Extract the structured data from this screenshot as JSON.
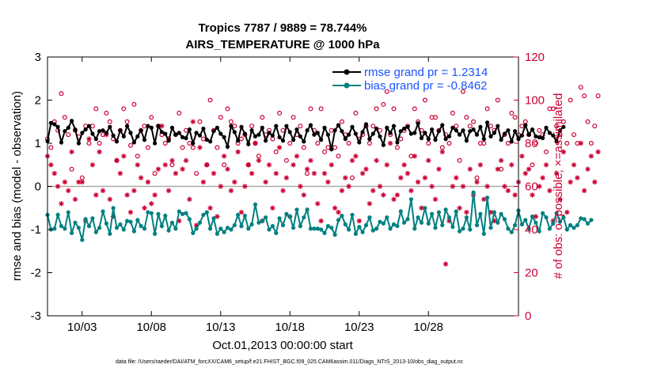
{
  "colors": {
    "rmse": "#000000",
    "bias": "#008080",
    "obs": "#cc0033",
    "legend_text": "#1a53ff",
    "zero_line": "#aaaaaa"
  },
  "footer": "data file: /Users/raeder/DAI/ATM_forcXX/CAM6_setup/f.e21.FHIST_BGC.f09_025.CAM6assim.011/Diags_NTrS_2013-10/obs_diag_output.nc",
  "chart_data": {
    "type": "line",
    "title": "Tropics 7787 / 9889 = 78.744%",
    "subtitle": "AIRS_TEMPERATURE @ 1000 hPa",
    "xlabel": "Oct.01,2013 00:00:00 start",
    "ylabel": "rmse and bias (model - observation)",
    "y2label": "# of obs: o=possible; ×=assimilated",
    "xlim": [
      0.5,
      34.5
    ],
    "ylim": [
      -3,
      3
    ],
    "y2lim": [
      0,
      120
    ],
    "x_ticks": [
      {
        "value": 3,
        "label": "10/03"
      },
      {
        "value": 8,
        "label": "10/08"
      },
      {
        "value": 13,
        "label": "10/13"
      },
      {
        "value": 18,
        "label": "10/18"
      },
      {
        "value": 23,
        "label": "10/23"
      },
      {
        "value": 28,
        "label": "10/28"
      }
    ],
    "y_ticks": [
      -3,
      -2,
      -1,
      0,
      1,
      2,
      3
    ],
    "y2_ticks": [
      0,
      20,
      40,
      60,
      80,
      100,
      120
    ],
    "legend": [
      {
        "name": "rmse grand pr = 1.2314",
        "key": "rmse"
      },
      {
        "name": "bias grand pr = -0.8462",
        "key": "bias"
      }
    ],
    "series": [
      {
        "name": "rmse",
        "axis": "left",
        "x_start": 0.5,
        "x_step": 0.25,
        "values": [
          1.05,
          1.47,
          1.44,
          1.38,
          1.02,
          1.28,
          1.36,
          1.52,
          1.32,
          1.0,
          1.24,
          1.32,
          1.4,
          1.22,
          1.1,
          1.28,
          1.3,
          1.24,
          1.38,
          1.18,
          1.04,
          1.3,
          1.16,
          1.4,
          1.24,
          1.02,
          1.16,
          1.3,
          1.08,
          1.4,
          1.36,
          1.0,
          1.4,
          1.26,
          1.22,
          1.06,
          1.36,
          1.2,
          1.24,
          1.14,
          1.12,
          1.32,
          1.0,
          1.24,
          1.18,
          1.34,
          1.08,
          1.04,
          1.28,
          1.36,
          1.22,
          1.14,
          0.92,
          1.4,
          1.26,
          1.06,
          1.38,
          1.22,
          0.98,
          1.3,
          1.16,
          1.2,
          1.36,
          1.06,
          1.24,
          1.18,
          1.4,
          1.14,
          1.06,
          1.4,
          1.26,
          1.08,
          1.32,
          1.16,
          1.04,
          1.3,
          1.42,
          1.2,
          1.24,
          1.08,
          1.36,
          1.2,
          0.86,
          1.3,
          1.42,
          1.28,
          1.1,
          1.2,
          1.38,
          1.22,
          1.02,
          1.26,
          1.44,
          1.1,
          1.22,
          1.34,
          1.16,
          0.96,
          1.36,
          1.24,
          1.4,
          1.02,
          1.28,
          1.34,
          1.38,
          1.22,
          1.24,
          1.46,
          1.12,
          1.24,
          1.1,
          1.32,
          1.08,
          1.28,
          1.42,
          1.1,
          1.16,
          1.36,
          1.3,
          1.2,
          1.3,
          1.06,
          1.28,
          1.32,
          1.2,
          1.38,
          1.1,
          1.48,
          1.16,
          1.24,
          1.4,
          1.08,
          1.22,
          1.3,
          1.04,
          1.28,
          1.1,
          1.18,
          1.42,
          1.2,
          1.32,
          1.16,
          1.14,
          1.12,
          1.36,
          1.24,
          1.18,
          1.04,
          1.3,
          1.38
        ]
      },
      {
        "name": "bias",
        "axis": "left",
        "x_start": 0.5,
        "x_step": 0.25,
        "values": [
          -0.66,
          -1.0,
          -0.98,
          -0.66,
          -0.92,
          -0.98,
          -0.6,
          -1.08,
          -0.84,
          -0.96,
          -1.24,
          -0.76,
          -0.92,
          -0.74,
          -1.06,
          -0.96,
          -0.58,
          -0.86,
          -1.1,
          -0.5,
          -0.96,
          -0.88,
          -1.0,
          -0.8,
          -0.82,
          -1.04,
          -0.78,
          -0.92,
          -0.98,
          -0.6,
          -0.62,
          -1.1,
          -0.64,
          -0.92,
          -0.68,
          -1.02,
          -0.84,
          -0.98,
          -0.58,
          -0.64,
          -0.62,
          -0.76,
          -1.08,
          -0.98,
          -0.84,
          -0.66,
          -0.6,
          -0.98,
          -0.74,
          -1.1,
          -0.98,
          -1.06,
          -0.96,
          -1.0,
          -0.9,
          -0.66,
          -0.92,
          -0.68,
          -0.98,
          -0.88,
          -0.42,
          -0.84,
          -0.8,
          -0.72,
          -1.0,
          -0.92,
          -1.08,
          -0.74,
          -0.9,
          -0.64,
          -0.7,
          -0.96,
          -0.54,
          -0.92,
          -0.72,
          -0.54,
          -0.98,
          -0.98,
          -0.98,
          -1.0,
          -1.08,
          -0.92,
          -0.96,
          -1.12,
          -0.78,
          -0.68,
          -0.88,
          -1.0,
          -0.66,
          -1.1,
          -0.94,
          -1.06,
          -0.9,
          -0.72,
          -1.02,
          -0.98,
          -0.82,
          -0.86,
          -0.72,
          -0.98,
          -0.88,
          -0.92,
          -0.58,
          -0.84,
          -0.76,
          -0.3,
          -0.98,
          -0.72,
          -0.84,
          -0.5,
          -0.86,
          -0.64,
          -0.96,
          -0.6,
          -0.9,
          -0.54,
          -0.72,
          -0.94,
          -0.58,
          -1.04,
          -0.98,
          -0.72,
          -1.0,
          -0.14,
          -0.9,
          -0.64,
          -1.1,
          -0.26,
          -0.96,
          -0.6,
          -0.84,
          -0.64,
          -0.76,
          -0.98,
          -1.06,
          -0.9,
          -0.56,
          -0.88,
          -0.78,
          -0.98,
          -0.7,
          -0.84,
          -1.04,
          -0.62,
          -0.72,
          -0.98,
          -0.86,
          -0.62,
          -0.82,
          -0.72,
          -1.0,
          -0.9,
          -0.96,
          -0.9,
          -0.74,
          -0.76,
          -0.86,
          -0.78
        ]
      },
      {
        "name": "obs possible (o)",
        "axis": "right",
        "x_start": 0.5,
        "x_step": 0.25,
        "values": [
          82,
          78,
          90,
          86,
          103,
          92,
          84,
          68,
          86,
          83,
          64,
          88,
          80,
          88,
          96,
          80,
          84,
          94,
          90,
          82,
          72,
          86,
          96,
          90,
          79,
          98,
          74,
          86,
          88,
          78,
          92,
          66,
          88,
          84,
          80,
          82,
          70,
          84,
          94,
          78,
          86,
          80,
          78,
          66,
          90,
          82,
          70,
          100,
          86,
          78,
          92,
          70,
          96,
          90,
          88,
          80,
          82,
          84,
          70,
          88,
          80,
          74,
          92,
          84,
          86,
          82,
          76,
          94,
          86,
          72,
          80,
          92,
          84,
          88,
          78,
          66,
          96,
          86,
          80,
          96,
          76,
          78,
          86,
          78,
          74,
          90,
          84,
          80,
          64,
          94,
          82,
          84,
          88,
          80,
          88,
          96,
          86,
          98,
          104,
          84,
          96,
          78,
          82,
          86,
          88,
          74,
          96,
          90,
          86,
          100,
          80,
          92,
          92,
          86,
          78,
          84,
          80,
          94,
          88,
          72,
          104,
          92,
          88,
          90,
          64,
          80,
          80,
          96,
          88,
          86,
          100,
          68,
          84,
          80,
          94,
          92,
          84,
          88,
          90,
          84,
          70,
          80,
          86,
          84,
          76,
          96,
          96,
          88,
          84,
          90,
          80,
          100,
          84,
          80,
          106,
          102,
          90,
          80,
          88,
          102
        ]
      },
      {
        "name": "obs assimilated (×)",
        "axis": "right",
        "x_start": 0.5,
        "x_step": 0.25,
        "values": [
          74,
          70,
          66,
          60,
          52,
          62,
          58,
          76,
          54,
          62,
          62,
          44,
          82,
          70,
          56,
          76,
          58,
          84,
          54,
          46,
          72,
          66,
          74,
          56,
          48,
          58,
          70,
          64,
          50,
          62,
          52,
          56,
          68,
          88,
          70,
          58,
          72,
          66,
          44,
          68,
          72,
          54,
          90,
          42,
          78,
          62,
          70,
          50,
          66,
          46,
          60,
          74,
          68,
          58,
          62,
          76,
          48,
          60,
          70,
          66,
          80,
          72,
          44,
          62,
          70,
          50,
          66,
          78,
          58,
          64,
          46,
          70,
          74,
          60,
          56,
          68,
          72,
          66,
          52,
          44,
          66,
          62,
          70,
          50,
          48,
          58,
          64,
          60,
          72,
          74,
          44,
          66,
          68,
          52,
          58,
          72,
          60,
          56,
          70,
          80,
          54,
          56,
          64,
          70,
          66,
          58,
          74,
          62,
          50,
          64,
          72,
          60,
          54,
          68,
          76,
          24,
          44,
          60,
          64,
          50,
          60,
          48,
          68,
          56,
          62,
          70,
          54,
          60,
          48,
          44,
          68,
          72,
          60,
          58,
          70,
          56,
          62,
          74,
          66,
          68,
          56,
          46,
          60,
          64,
          70,
          58,
          44,
          66,
          54,
          76,
          48,
          62,
          70,
          64,
          80,
          58,
          68,
          74,
          62,
          76
        ]
      }
    ]
  }
}
